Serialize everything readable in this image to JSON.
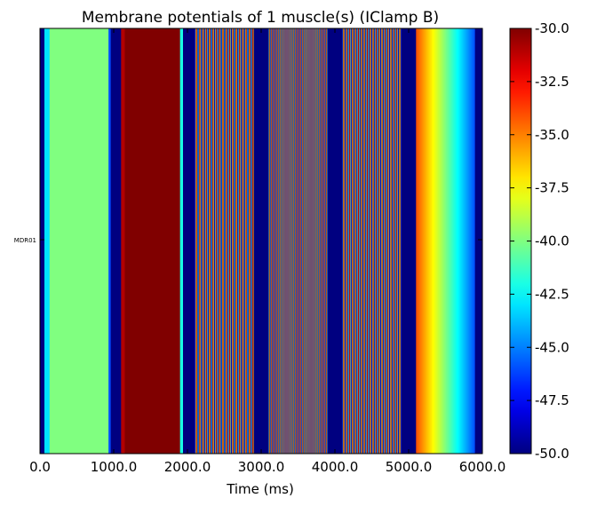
{
  "chart_data": {
    "type": "heatmap",
    "title": "Membrane potentials of 1 muscle(s) (IClamp B)",
    "xlabel": "Time (ms)",
    "ylabel": "",
    "xlim": [
      0,
      6000
    ],
    "x_ticks": [
      "0.0",
      "1000.0",
      "2000.0",
      "3000.0",
      "4000.0",
      "5000.0",
      "6000.0"
    ],
    "rows": [
      "MDR01"
    ],
    "colorbar": {
      "colormap": "jet",
      "vmin": -50.0,
      "vmax": -30.0,
      "ticks": [
        "-30.0",
        "-32.5",
        "-35.0",
        "-37.5",
        "-40.0",
        "-42.5",
        "-45.0",
        "-47.5",
        "-50.0"
      ]
    },
    "series": [
      {
        "segments": [
          {
            "x_start": 0,
            "x_end": 60,
            "value": -50
          },
          {
            "x_start": 60,
            "x_end": 130,
            "value": -43
          },
          {
            "x_start": 130,
            "x_end": 930,
            "value": -40
          },
          {
            "x_start": 930,
            "x_end": 960,
            "value": -46
          },
          {
            "x_start": 960,
            "x_end": 1100,
            "value": -50
          },
          {
            "x_start": 1100,
            "x_end": 1150,
            "value": -31
          },
          {
            "x_start": 1150,
            "x_end": 1900,
            "value": -30
          },
          {
            "x_start": 1900,
            "x_end": 1940,
            "value": -42
          },
          {
            "x_start": 1940,
            "x_end": 2100,
            "value": -50
          },
          {
            "x_start": 2100,
            "x_end": 2900,
            "oscillation": {
              "period_ms": 45,
              "min": -50,
              "max": -30
            }
          },
          {
            "x_start": 2900,
            "x_end": 3100,
            "value": -50
          },
          {
            "x_start": 3100,
            "x_end": 3900,
            "oscillation": {
              "period_ms": 25,
              "min": -50,
              "max": -30
            }
          },
          {
            "x_start": 3900,
            "x_end": 4100,
            "value": -50
          },
          {
            "x_start": 4100,
            "x_end": 4900,
            "oscillation": {
              "period_ms": 40,
              "min": -50,
              "max": -30
            }
          },
          {
            "x_start": 4900,
            "x_end": 5100,
            "value": -50
          },
          {
            "x_start": 5100,
            "x_end": 5900,
            "ramp": {
              "from": -34,
              "to": -46
            }
          },
          {
            "x_start": 5900,
            "x_end": 6000,
            "value": -50
          }
        ]
      }
    ]
  }
}
